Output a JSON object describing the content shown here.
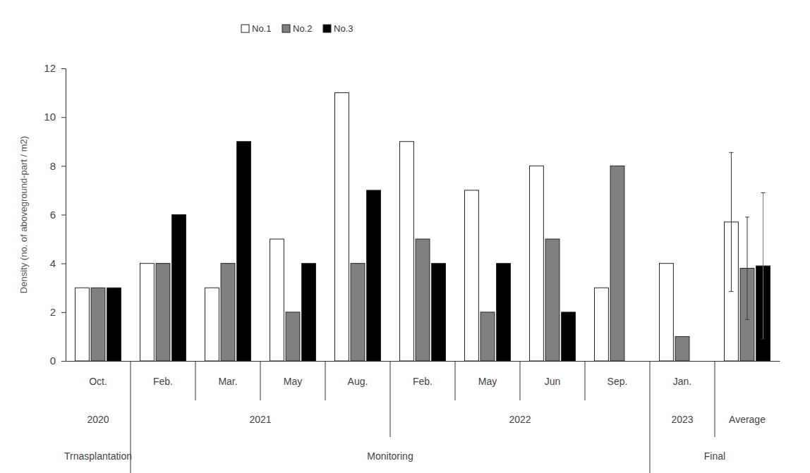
{
  "chart_data": {
    "type": "bar",
    "y_label": "Density (no. of aboveground-part / m2)",
    "categories": [
      "Oct.",
      "Feb.",
      "Mar.",
      "May",
      "Aug.",
      "Feb.",
      "May",
      "Jun",
      "Sep.",
      "Jan.",
      null
    ],
    "year_groups": [
      {
        "label": "2020",
        "count": 1
      },
      {
        "label": "2021",
        "count": 4
      },
      {
        "label": "2022",
        "count": 4
      },
      {
        "label": "2023",
        "count": 1
      },
      {
        "label": "Average",
        "count": 1
      }
    ],
    "phase_groups": [
      {
        "label": "Trnasplantation",
        "count": 1
      },
      {
        "label": "Monitoring",
        "count": 8
      },
      {
        "label": "Final",
        "count": 2
      }
    ],
    "series": [
      {
        "name": "No.1",
        "color": "#ffffff",
        "values": [
          3,
          4,
          3,
          5,
          11,
          9,
          7,
          8,
          3,
          4,
          5.7
        ],
        "errors": [
          null,
          null,
          null,
          null,
          null,
          null,
          null,
          null,
          null,
          null,
          2.85
        ]
      },
      {
        "name": "No.2",
        "color": "#808080",
        "values": [
          3,
          4,
          4,
          2,
          4,
          5,
          2,
          5,
          8,
          1,
          3.8
        ],
        "errors": [
          null,
          null,
          null,
          null,
          null,
          null,
          null,
          null,
          null,
          null,
          2.1
        ]
      },
      {
        "name": "No.3",
        "color": "#000000",
        "values": [
          3,
          6,
          9,
          4,
          7,
          4,
          4,
          2,
          0,
          0,
          3.9
        ],
        "errors": [
          null,
          null,
          null,
          null,
          null,
          null,
          null,
          null,
          null,
          null,
          3.0
        ]
      }
    ],
    "ylim": [
      0,
      12
    ],
    "yticks": [
      0,
      2,
      4,
      6,
      8,
      10,
      12
    ],
    "legend": "top"
  }
}
